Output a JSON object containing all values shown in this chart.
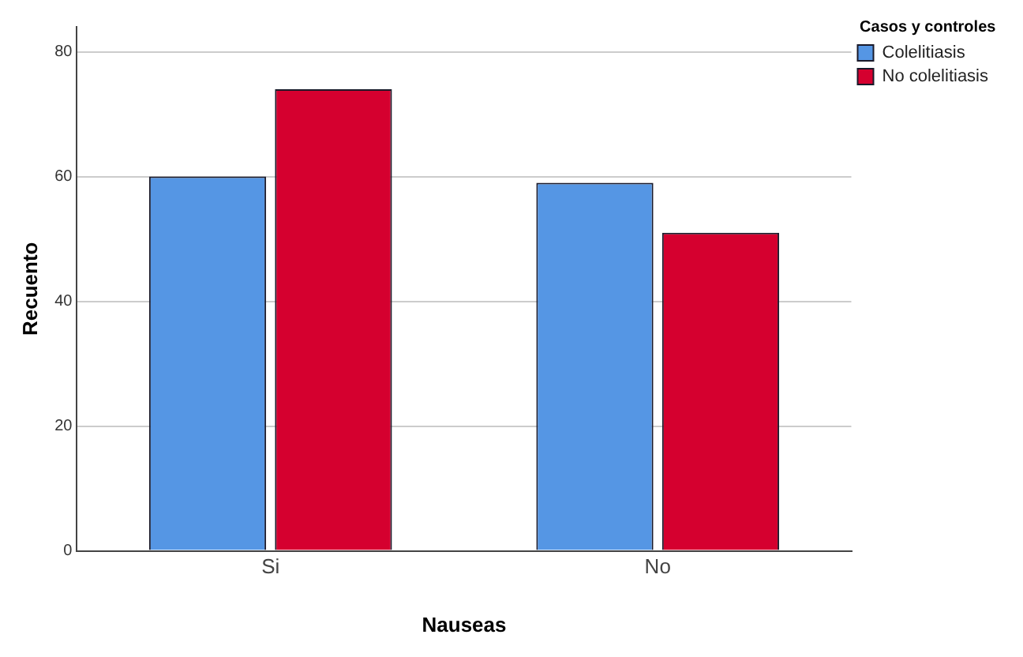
{
  "chart_data": {
    "type": "bar",
    "xlabel": "Nauseas",
    "ylabel": "Recuento",
    "legend_title": "Casos y controles",
    "categories": [
      "Si",
      "No"
    ],
    "series": [
      {
        "name": "Colelitiasis",
        "color": "#5596e4",
        "values": [
          60,
          59
        ]
      },
      {
        "name": "No colelitiasis",
        "color": "#d5002f",
        "values": [
          74,
          51
        ]
      }
    ],
    "ylim": [
      0,
      84
    ],
    "yticks": [
      0,
      20,
      40,
      60,
      80
    ],
    "grid": "y",
    "legend": "top right"
  }
}
